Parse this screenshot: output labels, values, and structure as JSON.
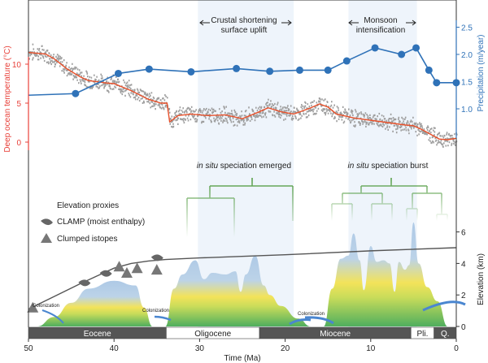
{
  "chart_data": {
    "type": "line",
    "xlabel": "Time (Ma)",
    "xlim": [
      50,
      0
    ],
    "x_ticks": [
      "50",
      "40",
      "30",
      "20",
      "10",
      "0"
    ],
    "temperature_axis": {
      "label": "Deep ocean temperature (°C)",
      "ticks": [
        "10",
        "5",
        "0"
      ],
      "color": "#e8413a"
    },
    "precip_axis": {
      "label": "Precipitation (m/year)",
      "ticks": [
        "2.5",
        "2.0",
        "1.5",
        "1.0"
      ],
      "color": "#2f72b8"
    },
    "elevation_axis": {
      "label": "Elevation (km)",
      "ticks": [
        "6",
        "4",
        "2",
        "0"
      ],
      "color": "#333333"
    },
    "temperature_smooth": {
      "color": "#e8502a",
      "x": [
        50,
        48,
        47,
        45.5,
        44,
        43,
        41,
        40,
        38,
        36,
        34.5,
        33.8,
        33.5,
        32.5,
        31,
        29,
        27,
        25,
        23,
        22,
        20.5,
        19,
        18,
        17,
        16,
        15,
        14,
        12,
        10,
        8,
        6,
        5,
        4,
        2,
        1,
        0
      ],
      "y": [
        11.5,
        11.3,
        10.7,
        9.4,
        8.4,
        7.9,
        7.6,
        7.5,
        6.6,
        5.5,
        5.0,
        5.0,
        2.6,
        3.4,
        3.6,
        3.4,
        3.5,
        3.0,
        3.9,
        4.4,
        3.9,
        3.6,
        4.0,
        4.4,
        4.9,
        4.5,
        3.6,
        3.1,
        2.8,
        2.5,
        2.2,
        2.1,
        1.6,
        0.4,
        0.3,
        0.5
      ]
    },
    "temperature_raw": {
      "color": "#9e9e9e",
      "note_shape": "scatter around smooth curve"
    },
    "precipitation": {
      "color": "#2f72b8",
      "x": [
        50,
        44.5,
        39.5,
        35.9,
        31,
        25.7,
        21.8,
        18.3,
        15,
        12.8,
        9.5,
        6.4,
        4.7,
        3.2,
        2.3,
        0
      ],
      "y": [
        1.25,
        1.28,
        1.65,
        1.73,
        1.68,
        1.74,
        1.69,
        1.71,
        1.71,
        1.88,
        2.12,
        2.0,
        2.12,
        1.71,
        1.48,
        1.48
      ],
      "marker_x": [
        44.5,
        39.5,
        35.9,
        31,
        25.7,
        21.8,
        18.3,
        15,
        12.8,
        9.5,
        6.4,
        4.7,
        3.2,
        2.3,
        0
      ]
    },
    "elevation_trend": {
      "color": "#555555",
      "x": [
        50,
        47,
        44,
        42,
        40,
        38,
        36,
        34,
        30,
        20,
        10,
        0
      ],
      "y": [
        1.1,
        1.9,
        2.7,
        3.2,
        3.7,
        4.0,
        4.15,
        4.25,
        4.35,
        4.55,
        4.8,
        5.0
      ]
    },
    "elevation_proxies": {
      "title": "Elevation proxies",
      "clamp_label": "CLAMP (moist enthalpy)",
      "clumped_label": "Clumped istopes",
      "clamp": {
        "x": [
          43.5,
          41,
          35
        ],
        "y": [
          2.7,
          3.3,
          4.3
        ]
      },
      "clumped": {
        "x": [
          49.5,
          39.4,
          38.5,
          37.3,
          35
        ],
        "y": [
          1.2,
          3.8,
          3.4,
          3.7,
          3.6
        ]
      }
    },
    "highlights": [
      {
        "label_line1": "Crustal shortening",
        "label_line2": "surface uplift",
        "from": 30.2,
        "to": 19
      },
      {
        "label_line1": "Monsoon",
        "label_line2": "intensification",
        "from": 12.6,
        "to": 4.6
      }
    ],
    "speciation": [
      {
        "italic": "in situ",
        "text": " speciation emerged"
      },
      {
        "italic": "in situ",
        "text": " speciation burst"
      }
    ],
    "colonization_label": "Colonization",
    "landscapes": [
      {
        "x": [
          49,
          47,
          45,
          43,
          40,
          37.5,
          36.5,
          35.5
        ],
        "y": [
          0,
          0.6,
          1.5,
          2.4,
          2.9,
          2.6,
          1.2,
          0
        ]
      },
      {
        "x": [
          34,
          33,
          32,
          30.5,
          29.5,
          28.5,
          27,
          25.8,
          25.2,
          24.6,
          23.5,
          22.5,
          21.8,
          20.5,
          18.5,
          17
        ],
        "y": [
          0,
          2.4,
          3.3,
          4.2,
          3.0,
          3.4,
          3.3,
          3.5,
          2.2,
          3.3,
          4.5,
          2.6,
          2.0,
          1.3,
          0.5,
          0
        ]
      },
      {
        "x": [
          15.5,
          14.5,
          13.5,
          12.6,
          12,
          11.3,
          10.8,
          10,
          9.3,
          8.5,
          7.8,
          7.2,
          6.7,
          6,
          5.5,
          5,
          4.4,
          3.4,
          2.2,
          1
        ],
        "y": [
          0,
          2.4,
          4.3,
          4.5,
          5.9,
          4.2,
          2.3,
          5.1,
          4.1,
          4.2,
          4.0,
          2.2,
          4.1,
          3.6,
          3.9,
          6.6,
          4.0,
          2.5,
          1.6,
          0
        ]
      }
    ],
    "epochs": [
      {
        "label": "Eocene",
        "from": 50,
        "to": 33.9,
        "fill": "#555555",
        "text": "#ffffff"
      },
      {
        "label": "Oligocene",
        "from": 33.9,
        "to": 23,
        "fill": "#ffffff",
        "text": "#222222"
      },
      {
        "label": "Miocene",
        "from": 23,
        "to": 5.3,
        "fill": "#555555",
        "text": "#ffffff"
      },
      {
        "label": "Pli.",
        "from": 5.3,
        "to": 2.6,
        "fill": "#ffffff",
        "text": "#222222"
      },
      {
        "label": "Q.",
        "from": 2.6,
        "to": 0,
        "fill": "#555555",
        "text": "#ffffff"
      }
    ]
  }
}
